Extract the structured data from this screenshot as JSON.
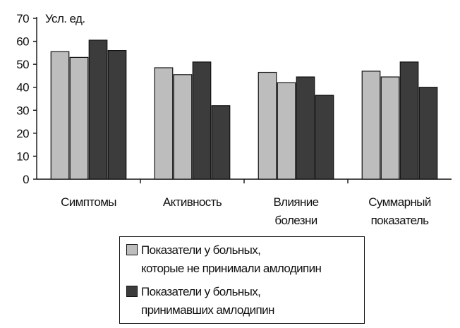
{
  "chart_data": {
    "type": "bar",
    "ylabel": "Усл. ед.",
    "ylim": [
      0,
      70
    ],
    "yticks": [
      0,
      10,
      20,
      30,
      40,
      50,
      60,
      70
    ],
    "categories": [
      [
        "Симптомы"
      ],
      [
        "Активность"
      ],
      [
        "Влияние",
        "болезни"
      ],
      [
        "Суммарный",
        "показатель"
      ]
    ],
    "series": [
      {
        "name": [
          "Показатели у больных,",
          "которые не принимали амлодипин"
        ],
        "color": "#bdbdbd",
        "values": [
          [
            55.5,
            53
          ],
          [
            48.5,
            45.5
          ],
          [
            46.5,
            42
          ],
          [
            47,
            44.5
          ]
        ]
      },
      {
        "name": [
          "Показатели у больных,",
          "принимавших амлодипин"
        ],
        "color": "#3c3c3c",
        "values": [
          [
            60.5,
            56
          ],
          [
            51,
            32
          ],
          [
            44.5,
            36.5
          ],
          [
            51,
            40
          ]
        ]
      }
    ],
    "grid": false,
    "legend_position": "bottom"
  }
}
